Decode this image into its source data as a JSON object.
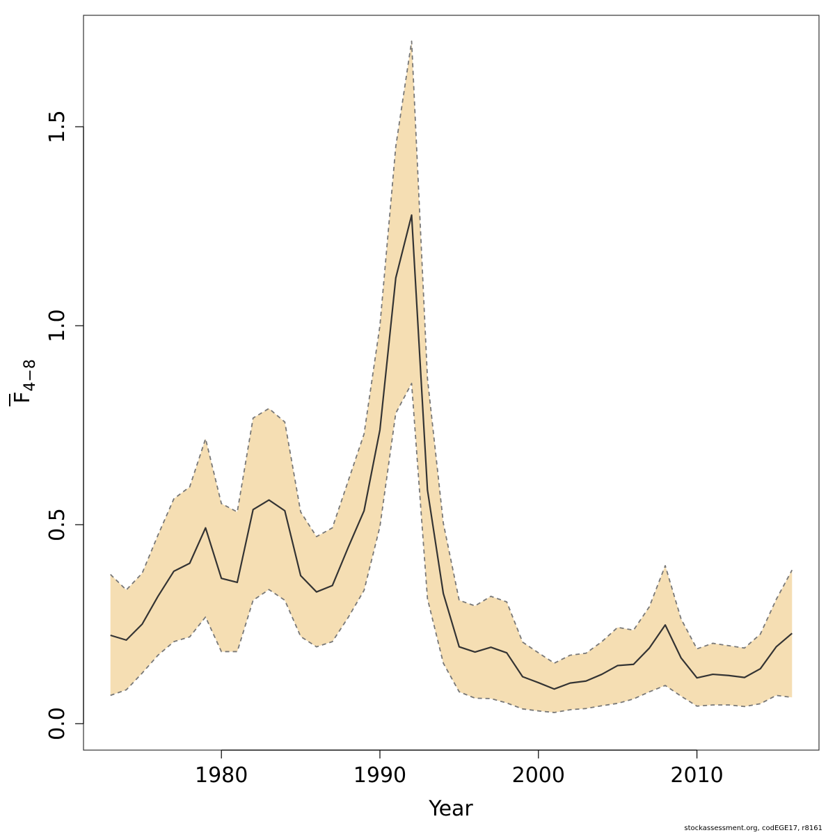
{
  "chart_data": {
    "type": "area",
    "title": "",
    "xlabel": "Year",
    "ylabel": {
      "main": "F",
      "sub": "4−8"
    },
    "xlim": [
      1971.3,
      1917.0
    ],
    "ylim": [
      -0.0665,
      1.78
    ],
    "xticks": [
      1980,
      1990,
      2000,
      2010
    ],
    "yticks": [
      0.0,
      0.5,
      1.0,
      1.5
    ],
    "ytick_labels": [
      "0.0",
      "0.5",
      "1.0",
      "1.5"
    ],
    "grid": false,
    "legend": "none",
    "colors": {
      "band": "#f5deb3",
      "line": "#333333",
      "bounds": "#777777",
      "frame": "#333333"
    },
    "x": [
      1973,
      1974,
      1975,
      1976,
      1977,
      1978,
      1979,
      1980,
      1981,
      1982,
      1983,
      1984,
      1985,
      1986,
      1987,
      1988,
      1989,
      1990,
      1991,
      1992,
      1993,
      1994,
      1995,
      1996,
      1997,
      1998,
      1999,
      2000,
      2001,
      2002,
      2003,
      2004,
      2005,
      2006,
      2007,
      2008,
      2009,
      2010,
      2011,
      2012,
      2013,
      2014,
      2015,
      2016
    ],
    "series": [
      {
        "role": "estimate",
        "values": [
          0.222,
          0.21,
          0.25,
          0.32,
          0.383,
          0.403,
          0.492,
          0.365,
          0.355,
          0.538,
          0.562,
          0.535,
          0.372,
          0.331,
          0.347,
          0.443,
          0.535,
          0.738,
          1.12,
          1.278,
          0.587,
          0.327,
          0.193,
          0.18,
          0.192,
          0.178,
          0.118,
          0.103,
          0.087,
          0.102,
          0.107,
          0.124,
          0.146,
          0.149,
          0.19,
          0.248,
          0.165,
          0.115,
          0.124,
          0.121,
          0.116,
          0.138,
          0.193,
          0.227
        ]
      },
      {
        "role": "upper",
        "values": [
          0.375,
          0.336,
          0.378,
          0.474,
          0.565,
          0.595,
          0.716,
          0.553,
          0.532,
          0.768,
          0.792,
          0.758,
          0.532,
          0.47,
          0.492,
          0.61,
          0.728,
          1.0,
          1.45,
          1.715,
          0.867,
          0.504,
          0.31,
          0.296,
          0.32,
          0.306,
          0.205,
          0.178,
          0.152,
          0.172,
          0.177,
          0.206,
          0.242,
          0.235,
          0.294,
          0.397,
          0.263,
          0.188,
          0.202,
          0.196,
          0.19,
          0.225,
          0.312,
          0.386
        ]
      },
      {
        "role": "lower",
        "values": [
          0.071,
          0.085,
          0.127,
          0.172,
          0.206,
          0.218,
          0.268,
          0.181,
          0.181,
          0.31,
          0.337,
          0.31,
          0.219,
          0.193,
          0.206,
          0.267,
          0.335,
          0.495,
          0.78,
          0.855,
          0.314,
          0.152,
          0.08,
          0.064,
          0.063,
          0.052,
          0.037,
          0.032,
          0.028,
          0.035,
          0.038,
          0.045,
          0.051,
          0.062,
          0.08,
          0.096,
          0.069,
          0.044,
          0.047,
          0.047,
          0.043,
          0.05,
          0.071,
          0.066
        ]
      }
    ]
  },
  "footer": {
    "credit": "stockassessment.org, codEGE17, r8161"
  }
}
